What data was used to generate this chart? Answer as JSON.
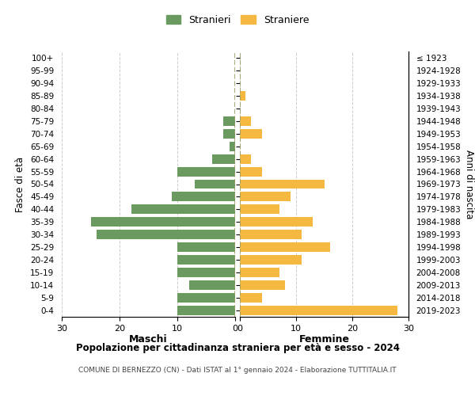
{
  "age_groups": [
    "0-4",
    "5-9",
    "10-14",
    "15-19",
    "20-24",
    "25-29",
    "30-34",
    "35-39",
    "40-44",
    "45-49",
    "50-54",
    "55-59",
    "60-64",
    "65-69",
    "70-74",
    "75-79",
    "80-84",
    "85-89",
    "90-94",
    "95-99",
    "100+"
  ],
  "birth_years": [
    "2019-2023",
    "2014-2018",
    "2009-2013",
    "2004-2008",
    "1999-2003",
    "1994-1998",
    "1989-1993",
    "1984-1988",
    "1979-1983",
    "1974-1978",
    "1969-1973",
    "1964-1968",
    "1959-1963",
    "1954-1958",
    "1949-1953",
    "1944-1948",
    "1939-1943",
    "1934-1938",
    "1929-1933",
    "1924-1928",
    "≤ 1923"
  ],
  "maschi": [
    10,
    10,
    8,
    10,
    10,
    10,
    24,
    25,
    18,
    11,
    7,
    10,
    4,
    1,
    2,
    2,
    0,
    0,
    0,
    0,
    0
  ],
  "femmine": [
    28,
    4,
    8,
    7,
    11,
    16,
    11,
    13,
    7,
    9,
    15,
    4,
    2,
    0,
    4,
    2,
    0,
    1,
    0,
    0,
    0
  ],
  "maschi_color": "#6a9a5f",
  "femmine_color": "#f5b942",
  "title": "Popolazione per cittadinanza straniera per età e sesso - 2024",
  "subtitle": "COMUNE DI BERNEZZO (CN) - Dati ISTAT al 1° gennaio 2024 - Elaborazione TUTTITALIA.IT",
  "xlabel_left": "Maschi",
  "xlabel_right": "Femmine",
  "ylabel_left": "Fasce di età",
  "ylabel_right": "Anni di nascita",
  "legend_maschi": "Stranieri",
  "legend_femmine": "Straniere",
  "xlim": 30,
  "background_color": "#ffffff",
  "grid_color": "#cccccc",
  "center_line_color": "#999966"
}
